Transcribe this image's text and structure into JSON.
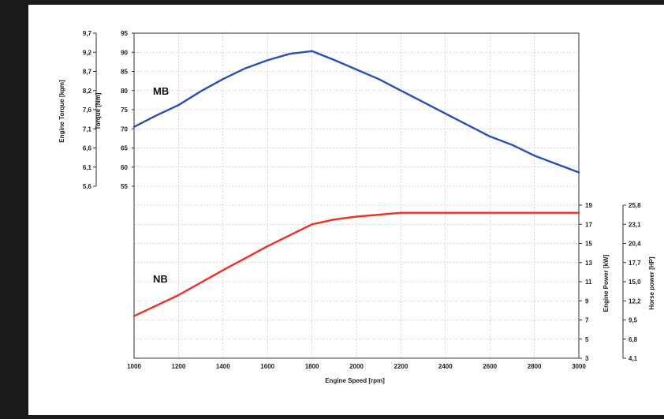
{
  "chart_data": {
    "type": "line",
    "xlabel": "Engine Speed [rpm]",
    "x_ticks": [
      "1000",
      "1200",
      "1400",
      "1600",
      "1800",
      "2000",
      "2200",
      "2400",
      "2600",
      "2800",
      "3000"
    ],
    "xlim": [
      1000,
      3000
    ],
    "grid": true,
    "torque_panel": {
      "ylabel_nm": "Torque [Nm]",
      "ylabel_kgm": "Engine Torque [kgm]",
      "ylim": [
        55,
        95
      ],
      "nm_ticks": [
        "55",
        "60",
        "65",
        "70",
        "75",
        "80",
        "85",
        "90",
        "95"
      ],
      "kgm_ticks": [
        "5,6",
        "6,1",
        "6,6",
        "7,1",
        "7,6",
        "8,2",
        "8,7",
        "9,2",
        "9,7"
      ],
      "color": "#2a4fb3",
      "series": {
        "name": "MB",
        "x": [
          1000,
          1100,
          1200,
          1300,
          1400,
          1500,
          1600,
          1700,
          1800,
          1900,
          2000,
          2100,
          2200,
          2300,
          2400,
          2500,
          2600,
          2700,
          2800,
          2900,
          3000
        ],
        "y": [
          70.5,
          73.5,
          76.2,
          79.8,
          83.0,
          85.8,
          87.9,
          89.6,
          90.3,
          88.0,
          85.5,
          83.0,
          80.0,
          77.0,
          74.0,
          71.0,
          68.0,
          65.8,
          63.0,
          60.8,
          58.6
        ]
      }
    },
    "power_panel": {
      "ylabel_kw": "Engine Power [kW]",
      "ylabel_hp": "Horse power [HP]",
      "ylim": [
        3,
        19
      ],
      "kw_ticks": [
        "3",
        "5",
        "7",
        "9",
        "11",
        "13",
        "15",
        "17",
        "19"
      ],
      "hp_ticks": [
        "4,1",
        "6,8",
        "9,5",
        "12,2",
        "15,0",
        "17,7",
        "20,4",
        "23,1",
        "25,8"
      ],
      "color": "#ee3124",
      "series": {
        "name": "NB",
        "x": [
          1000,
          1200,
          1400,
          1600,
          1800,
          1900,
          2000,
          2200,
          3000
        ],
        "y": [
          7.4,
          9.6,
          12.2,
          14.7,
          17.0,
          17.5,
          17.8,
          18.2,
          18.2
        ]
      }
    }
  }
}
